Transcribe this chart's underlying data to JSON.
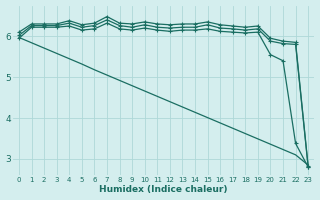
{
  "xlabel": "Humidex (Indice chaleur)",
  "bg_color": "#d4eeee",
  "grid_color": "#aed8d8",
  "line_color": "#1a6e62",
  "xlim": [
    -0.5,
    23.5
  ],
  "ylim": [
    2.6,
    6.75
  ],
  "yticks": [
    3,
    4,
    5,
    6
  ],
  "xticks": [
    0,
    1,
    2,
    3,
    4,
    5,
    6,
    7,
    8,
    9,
    10,
    11,
    12,
    13,
    14,
    15,
    16,
    17,
    18,
    19,
    20,
    21,
    22,
    23
  ],
  "series": [
    {
      "x": [
        0,
        1,
        2,
        3,
        4,
        5,
        6,
        7,
        8,
        9,
        10,
        11,
        12,
        13,
        14,
        15,
        16,
        17,
        18,
        19,
        20,
        21,
        22,
        23
      ],
      "y": [
        6.1,
        6.3,
        6.3,
        6.3,
        6.38,
        6.28,
        6.32,
        6.48,
        6.32,
        6.3,
        6.35,
        6.3,
        6.28,
        6.3,
        6.3,
        6.35,
        6.28,
        6.25,
        6.22,
        6.25,
        5.95,
        5.88,
        5.85,
        2.82
      ],
      "marker": "+",
      "ms": 3.5,
      "lw": 0.9,
      "zorder": 3
    },
    {
      "x": [
        0,
        1,
        2,
        3,
        4,
        5,
        6,
        7,
        8,
        9,
        10,
        11,
        12,
        13,
        14,
        15,
        16,
        17,
        18,
        19,
        20,
        21,
        22,
        23
      ],
      "y": [
        6.02,
        6.26,
        6.26,
        6.26,
        6.32,
        6.22,
        6.26,
        6.4,
        6.26,
        6.22,
        6.28,
        6.22,
        6.2,
        6.22,
        6.22,
        6.28,
        6.2,
        6.18,
        6.15,
        6.18,
        5.88,
        5.82,
        5.8,
        2.8
      ],
      "marker": "+",
      "ms": 3.5,
      "lw": 0.9,
      "zorder": 3
    },
    {
      "x": [
        0,
        1,
        2,
        3,
        4,
        5,
        6,
        7,
        8,
        9,
        10,
        11,
        12,
        13,
        14,
        15,
        16,
        17,
        18,
        19,
        20,
        21,
        22,
        23
      ],
      "y": [
        5.95,
        6.22,
        6.22,
        6.22,
        6.25,
        6.15,
        6.18,
        6.32,
        6.18,
        6.15,
        6.2,
        6.15,
        6.12,
        6.15,
        6.15,
        6.18,
        6.12,
        6.1,
        6.08,
        6.1,
        5.55,
        5.4,
        3.38,
        2.8
      ],
      "marker": "+",
      "ms": 3.5,
      "lw": 0.9,
      "zorder": 3
    },
    {
      "x": [
        0,
        1,
        2,
        3,
        4,
        5,
        6,
        7,
        8,
        9,
        10,
        11,
        12,
        13,
        14,
        15,
        16,
        17,
        18,
        19,
        20,
        21,
        22,
        23
      ],
      "y": [
        5.97,
        5.84,
        5.71,
        5.58,
        5.45,
        5.32,
        5.18,
        5.05,
        4.92,
        4.79,
        4.66,
        4.53,
        4.4,
        4.27,
        4.14,
        4.01,
        3.88,
        3.75,
        3.62,
        3.49,
        3.36,
        3.23,
        3.1,
        2.85
      ],
      "marker": null,
      "ms": 0,
      "lw": 0.9,
      "zorder": 2
    }
  ]
}
